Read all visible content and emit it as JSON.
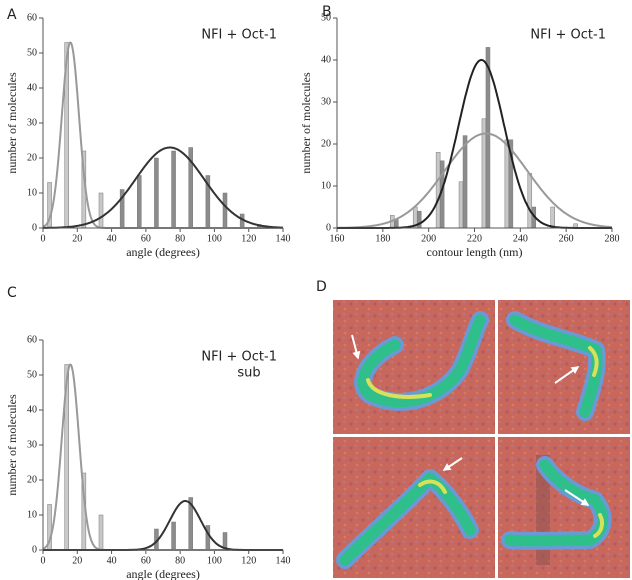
{
  "chart_data": [
    {
      "type": "bar",
      "panel_label": "A",
      "title": "NFI + Oct-1",
      "x_label": "angle (degrees)",
      "y_label": "number of molecules",
      "x": [
        5,
        15,
        25,
        35,
        45,
        55,
        65,
        75,
        85,
        95,
        105,
        115,
        125
      ],
      "series": [
        {
          "color": "#c8c8c8",
          "values": [
            13,
            53,
            22,
            10,
            null,
            null,
            null,
            null,
            null,
            null,
            null,
            null,
            null
          ]
        },
        {
          "color": "#8c8c8c",
          "values": [
            null,
            null,
            null,
            null,
            11,
            15,
            20,
            22,
            23,
            15,
            10,
            4,
            1
          ]
        }
      ],
      "fits": [
        {
          "color": "#999999",
          "peak": 53,
          "mean": 16,
          "sd": 5
        },
        {
          "color": "#333333",
          "peak": 23,
          "mean": 74,
          "sd": 20
        }
      ],
      "xlim": [
        0,
        140
      ],
      "xticks": [
        0,
        20,
        40,
        60,
        80,
        100,
        120,
        140
      ],
      "ylim": [
        0,
        60
      ],
      "yticks": [
        0,
        10,
        20,
        30,
        40,
        50,
        60
      ]
    },
    {
      "type": "bar",
      "panel_label": "B",
      "title": "NFI + Oct-1",
      "x_label": "contour length (nm)",
      "y_label": "number of molecules",
      "x": [
        185,
        195,
        205,
        215,
        225,
        235,
        245,
        255,
        265
      ],
      "series": [
        {
          "color": "#c8c8c8",
          "values": [
            3,
            5,
            18,
            11,
            26,
            21,
            13,
            5,
            1
          ]
        },
        {
          "color": "#8c8c8c",
          "values": [
            2,
            4,
            16,
            22,
            43,
            21,
            5,
            null,
            null
          ]
        }
      ],
      "fits": [
        {
          "color": "#999999",
          "peak": 22.5,
          "mean": 225,
          "sd": 18
        },
        {
          "color": "#222222",
          "peak": 40,
          "mean": 223,
          "sd": 10
        }
      ],
      "xlim": [
        160,
        280
      ],
      "xticks": [
        160,
        180,
        200,
        220,
        240,
        260,
        280
      ],
      "ylim": [
        0,
        50
      ],
      "yticks": [
        0,
        10,
        20,
        30,
        40,
        50
      ]
    },
    {
      "type": "bar",
      "panel_label": "C",
      "title": "NFI + Oct-1",
      "subtitle": "sub",
      "x_label": "angle (degrees)",
      "y_label": "number of molecules",
      "x": [
        5,
        15,
        25,
        35,
        65,
        75,
        85,
        95,
        105
      ],
      "series": [
        {
          "color": "#c8c8c8",
          "values": [
            13,
            53,
            22,
            10,
            null,
            null,
            null,
            null,
            null
          ]
        },
        {
          "color": "#8c8c8c",
          "values": [
            null,
            null,
            null,
            null,
            6,
            8,
            15,
            7,
            5
          ]
        }
      ],
      "fits": [
        {
          "color": "#999999",
          "peak": 53,
          "mean": 16,
          "sd": 5
        },
        {
          "color": "#333333",
          "peak": 14,
          "mean": 83,
          "sd": 9
        }
      ],
      "xlim": [
        0,
        140
      ],
      "xticks": [
        0,
        20,
        40,
        60,
        80,
        100,
        120,
        140
      ],
      "ylim": [
        0,
        60
      ],
      "yticks": [
        0,
        10,
        20,
        30,
        40,
        50,
        60
      ]
    }
  ],
  "image_panel": {
    "label": "D"
  }
}
